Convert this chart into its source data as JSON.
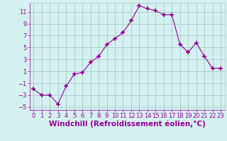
{
  "x": [
    0,
    1,
    2,
    3,
    4,
    5,
    6,
    7,
    8,
    9,
    10,
    11,
    12,
    13,
    14,
    15,
    16,
    17,
    18,
    19,
    20,
    21,
    22,
    23
  ],
  "y": [
    -2,
    -3,
    -3,
    -4.5,
    -1.5,
    0.5,
    0.8,
    2.5,
    3.5,
    5.5,
    6.5,
    7.5,
    9.5,
    12.0,
    11.5,
    11.2,
    10.5,
    10.5,
    5.5,
    4.2,
    5.8,
    3.5,
    1.5,
    1.5
  ],
  "line_color": "#990099",
  "marker": "+",
  "marker_size": 4,
  "bg_color": "#d4f0f0",
  "grid_color": "#aacccc",
  "xlabel": "Windchill (Refroidissement éolien,°C)",
  "xlabel_color": "#990099",
  "xlabel_fontsize": 7.5,
  "tick_color": "#990099",
  "tick_fontsize": 6,
  "ylim": [
    -5.5,
    12.5
  ],
  "xlim": [
    -0.5,
    23.5
  ],
  "yticks": [
    -5,
    -3,
    -1,
    1,
    3,
    5,
    7,
    9,
    11
  ],
  "xticks": [
    0,
    1,
    2,
    3,
    4,
    5,
    6,
    7,
    8,
    9,
    10,
    11,
    12,
    13,
    14,
    15,
    16,
    17,
    18,
    19,
    20,
    21,
    22,
    23
  ]
}
